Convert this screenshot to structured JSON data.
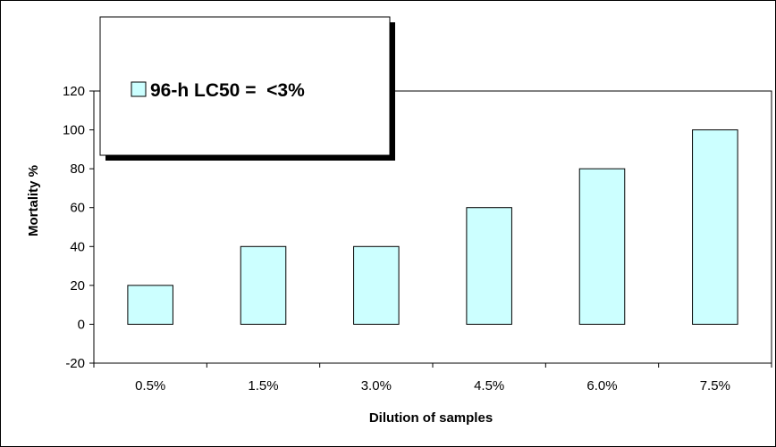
{
  "chart_data": {
    "type": "bar",
    "categories": [
      "0.5%",
      "1.5%",
      "3.0%",
      "4.5%",
      "6.0%",
      "7.5%"
    ],
    "values": [
      20,
      40,
      40,
      60,
      80,
      100
    ],
    "xlabel": "Dilution of samples",
    "ylabel": "Mortality %",
    "ylim": [
      -20,
      120
    ],
    "yticks": [
      "-20",
      "0",
      "20",
      "40",
      "60",
      "80",
      "100",
      "120"
    ],
    "legend": "96-h LC50 =  <3%",
    "legend_position": "top-left",
    "grid": false,
    "bar_color": "#ccffff",
    "bar_outline": "#000000"
  }
}
